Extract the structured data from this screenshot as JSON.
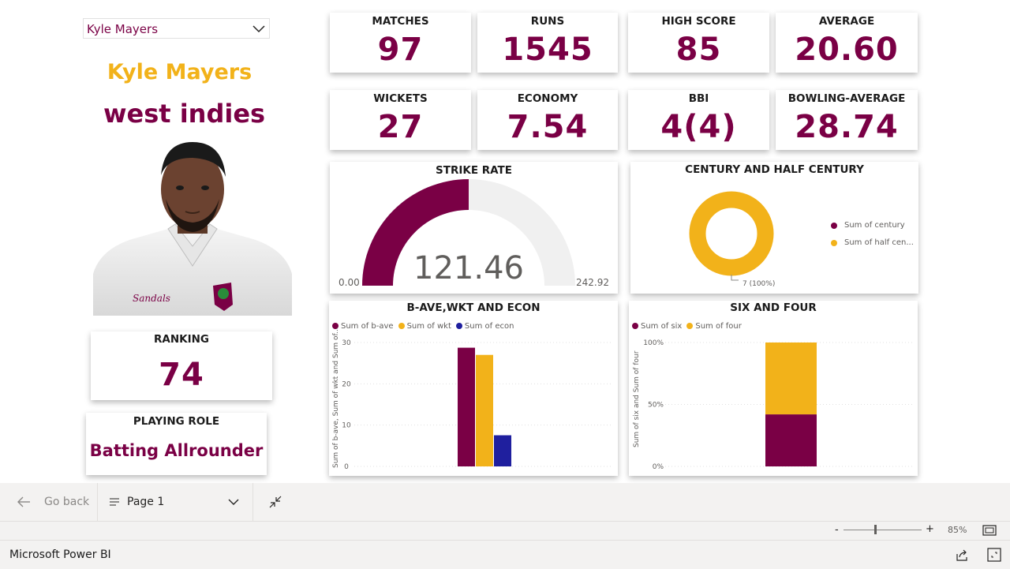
{
  "slicer": {
    "selected": "Kyle Mayers"
  },
  "player": {
    "name": "Kyle Mayers",
    "team": "west indies"
  },
  "kpis_row1": [
    {
      "label": "MATCHES",
      "value": "97"
    },
    {
      "label": "RUNS",
      "value": "1545"
    },
    {
      "label": "HIGH SCORE",
      "value": "85"
    },
    {
      "label": "AVERAGE",
      "value": "20.60"
    }
  ],
  "kpis_row2": [
    {
      "label": "WICKETS",
      "value": "27"
    },
    {
      "label": "ECONOMY",
      "value": "7.54"
    },
    {
      "label": "BBI",
      "value": "4(4)"
    },
    {
      "label": "BOWLING-AVERAGE",
      "value": "28.74"
    }
  ],
  "ranking": {
    "label": "RANKING",
    "value": "74"
  },
  "role": {
    "label": "PLAYING ROLE",
    "value": "Batting Allrounder"
  },
  "colors": {
    "maroon": "#7a0045",
    "gold": "#f2b21a",
    "navy": "#1f1f9e",
    "grey": "#f0f0f0"
  },
  "chart_data": [
    {
      "type": "gauge",
      "title": "STRIKE RATE",
      "value": 121.46,
      "value_label": "121.46",
      "min": 0,
      "max": 242.92,
      "min_label": "0.00",
      "max_label": "242.92"
    },
    {
      "type": "pie",
      "title": "CENTURY AND HALF CENTURY",
      "series": [
        {
          "name": "Sum of century",
          "value": 0
        },
        {
          "name": "Sum of half cen...",
          "value": 7
        }
      ],
      "data_label": "7 (100%)"
    },
    {
      "type": "bar",
      "title": "B-AVE,WKT AND ECON",
      "ylabel": "Sum of b-ave, Sum of wkt and Sum of...",
      "ylim": [
        0,
        30
      ],
      "yticks": [
        "0",
        "10",
        "20",
        "30"
      ],
      "series": [
        {
          "name": "Sum of b-ave",
          "values": [
            28.74
          ]
        },
        {
          "name": "Sum of wkt",
          "values": [
            27
          ]
        },
        {
          "name": "Sum of econ",
          "values": [
            7.54
          ]
        }
      ]
    },
    {
      "type": "bar",
      "stacked": "100%",
      "title": "SIX AND FOUR",
      "ylabel": "Sum of six and Sum of four",
      "yticks": [
        "0%",
        "50%",
        "100%"
      ],
      "series": [
        {
          "name": "Sum of six",
          "values": [
            42
          ]
        },
        {
          "name": "Sum of four",
          "values": [
            58
          ]
        }
      ]
    }
  ],
  "footer": {
    "go_back": "Go back",
    "page": "Page 1",
    "zoom_minus": "-",
    "zoom_plus": "+",
    "zoom": "85%",
    "app_name": "Microsoft Power BI"
  }
}
